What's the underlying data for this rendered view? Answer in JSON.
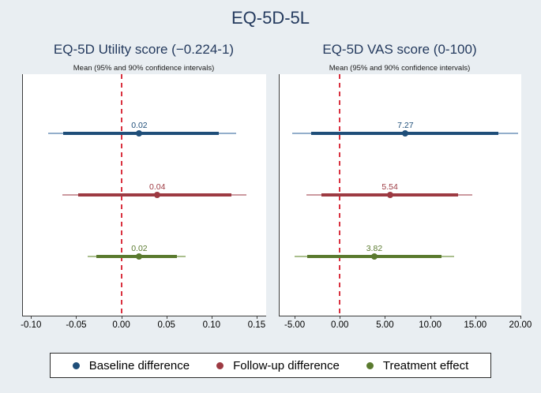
{
  "title": "EQ-5D-5L",
  "colors": {
    "background": "#e9eef2",
    "navy_text": "#243a5e",
    "axis": "#3d3d3d",
    "zero_line": "#d9313f",
    "baseline": "#1f4e79",
    "baseline_light": "#93aecb",
    "followup": "#9d3a42",
    "followup_light": "#cc9aa0",
    "treatment": "#5a7a2e",
    "treatment_light": "#aabf8d"
  },
  "legend": {
    "items": [
      {
        "series": "baseline",
        "label": "Baseline difference"
      },
      {
        "series": "followup",
        "label": "Follow-up difference"
      },
      {
        "series": "treatment",
        "label": "Treatment effect"
      }
    ]
  },
  "chart_data": [
    {
      "type": "forest",
      "panel": "utility",
      "subtitle": "EQ-5D Utility score (−0.224-1)",
      "note": "Mean (95% and 90% confidence intervals)",
      "xlim": [
        -0.109,
        0.1614
      ],
      "zero_line": 0,
      "grid": false,
      "ticks": [
        {
          "v": -0.1,
          "label": "-0.10"
        },
        {
          "v": -0.05,
          "label": "-0.05"
        },
        {
          "v": 0.0,
          "label": "0.00"
        },
        {
          "v": 0.05,
          "label": "0.05"
        },
        {
          "v": 0.1,
          "label": "0.10"
        },
        {
          "v": 0.15,
          "label": "0.15"
        }
      ],
      "rows": [
        {
          "series": "baseline",
          "name": "Baseline difference",
          "mean": 0.02,
          "label": "0.02",
          "ci90": [
            -0.064,
            0.108
          ],
          "ci95": [
            -0.081,
            0.127
          ]
        },
        {
          "series": "followup",
          "name": "Follow-up difference",
          "mean": 0.04,
          "label": "0.04",
          "ci90": [
            -0.048,
            0.122
          ],
          "ci95": [
            -0.065,
            0.139
          ]
        },
        {
          "series": "treatment",
          "name": "Treatment effect",
          "mean": 0.02,
          "label": "0.02",
          "ci90": [
            -0.028,
            0.062
          ],
          "ci95": [
            -0.037,
            0.071
          ]
        }
      ]
    },
    {
      "type": "forest",
      "panel": "vas",
      "subtitle": "EQ-5D VAS score (0-100)",
      "note": "Mean (95% and 90% confidence intervals)",
      "xlim": [
        -6.67,
        20.18
      ],
      "zero_line": 0,
      "grid": false,
      "ticks": [
        {
          "v": -5,
          "label": "-5.00"
        },
        {
          "v": 0,
          "label": "0.00"
        },
        {
          "v": 5,
          "label": "5.00"
        },
        {
          "v": 10,
          "label": "10.00"
        },
        {
          "v": 15,
          "label": "15.00"
        },
        {
          "v": 20,
          "label": "20.00"
        }
      ],
      "rows": [
        {
          "series": "baseline",
          "name": "Baseline difference",
          "mean": 7.27,
          "label": "7.27",
          "ci90": [
            -3.2,
            17.6
          ],
          "ci95": [
            -5.3,
            19.7
          ]
        },
        {
          "series": "followup",
          "name": "Follow-up difference",
          "mean": 5.54,
          "label": "5.54",
          "ci90": [
            -2.0,
            13.1
          ],
          "ci95": [
            -3.7,
            14.7
          ]
        },
        {
          "series": "treatment",
          "name": "Treatment effect",
          "mean": 3.82,
          "label": "3.82",
          "ci90": [
            -3.6,
            11.3
          ],
          "ci95": [
            -5.0,
            12.7
          ]
        }
      ]
    }
  ]
}
